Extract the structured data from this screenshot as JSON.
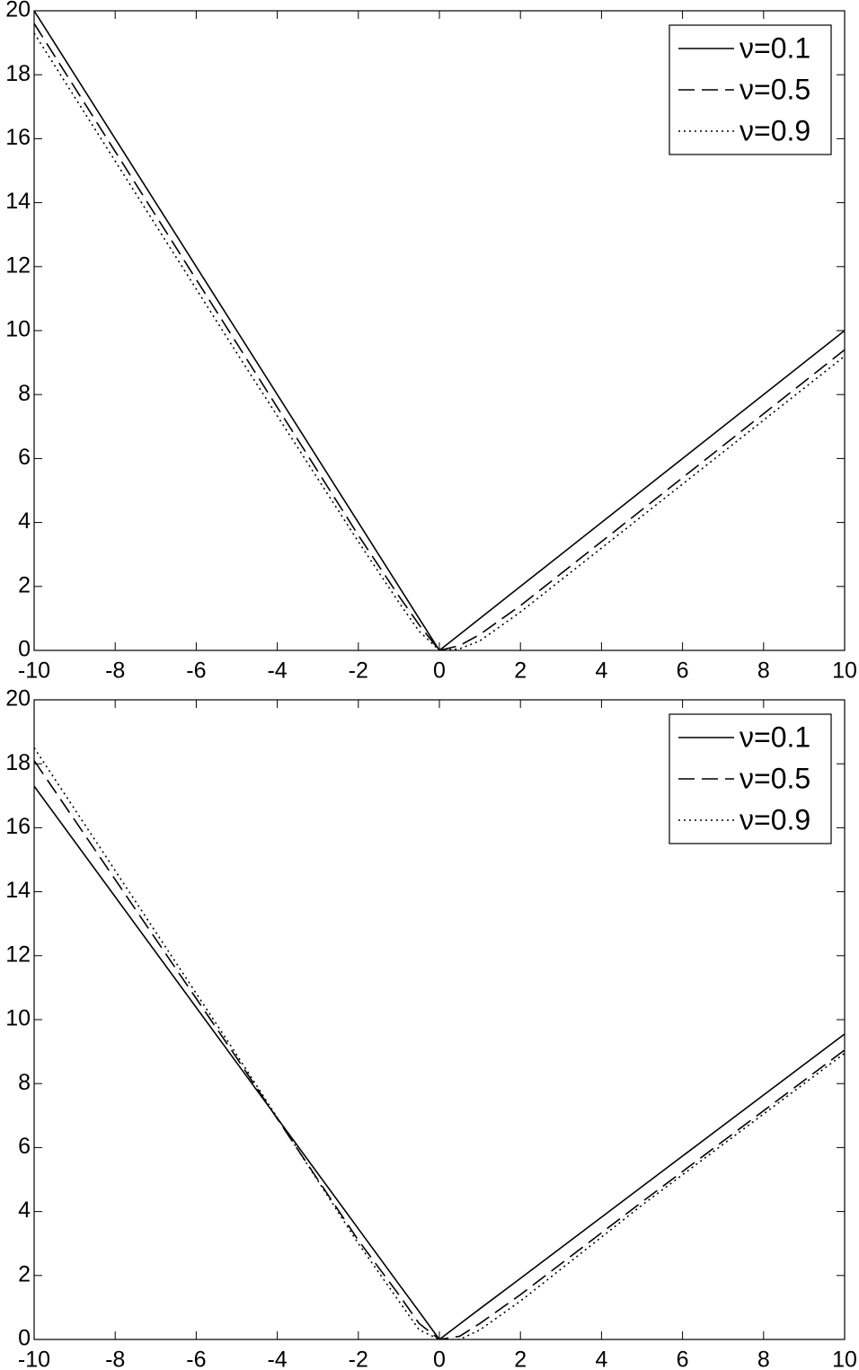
{
  "chart_data": [
    {
      "type": "line",
      "legend": "upper right",
      "x": [
        -10,
        -5,
        -2,
        -1,
        -0.5,
        0,
        0.5,
        1,
        2,
        5,
        10
      ],
      "series": [
        {
          "name": "ν=0.1",
          "color": "#000000",
          "linestyle": "solid",
          "values": [
            20,
            10,
            4,
            2,
            1,
            0,
            0.5,
            1,
            2,
            5,
            10
          ]
        },
        {
          "name": "ν=0.5",
          "color": "#000000",
          "linestyle": "dashed",
          "values": [
            19.6,
            9.6,
            3.6,
            1.7,
            0.8,
            0,
            0.15,
            0.5,
            1.4,
            4.4,
            9.4
          ]
        },
        {
          "name": "ν=0.9",
          "color": "#000000",
          "linestyle": "dotted",
          "values": [
            19.3,
            9.3,
            3.4,
            1.5,
            0.6,
            0,
            0.05,
            0.3,
            1.2,
            4.2,
            9.2
          ]
        }
      ],
      "xlim": [
        -10,
        10
      ],
      "xticks": [
        -10,
        -8,
        -6,
        -4,
        -2,
        0,
        2,
        4,
        6,
        8,
        10
      ],
      "ylim": [
        0,
        20
      ],
      "yticks": [
        0,
        2,
        4,
        6,
        8,
        10,
        12,
        14,
        16,
        18,
        20
      ]
    },
    {
      "type": "line",
      "legend": "upper right",
      "x": [
        -10,
        -5,
        -2,
        -1,
        -0.5,
        0,
        0.5,
        1,
        2,
        5,
        10
      ],
      "series": [
        {
          "name": "ν=0.1",
          "color": "#000000",
          "linestyle": "solid",
          "values": [
            17.3,
            8.65,
            3.46,
            1.73,
            0.87,
            0,
            0.48,
            0.96,
            1.91,
            4.78,
            9.55
          ]
        },
        {
          "name": "ν=0.5",
          "color": "#000000",
          "linestyle": "dashed",
          "values": [
            18.1,
            8.8,
            3.1,
            1.4,
            0.5,
            0,
            0.1,
            0.5,
            1.4,
            4.3,
            9.05
          ]
        },
        {
          "name": "ν=0.9",
          "color": "#000000",
          "linestyle": "dotted",
          "values": [
            18.5,
            8.9,
            3.0,
            1.2,
            0.3,
            0,
            0,
            0.3,
            1.2,
            4.2,
            8.95
          ]
        }
      ],
      "xlim": [
        -10,
        10
      ],
      "xticks": [
        -10,
        -8,
        -6,
        -4,
        -2,
        0,
        2,
        4,
        6,
        8,
        10
      ],
      "ylim": [
        0,
        20
      ],
      "yticks": [
        0,
        2,
        4,
        6,
        8,
        10,
        12,
        14,
        16,
        18,
        20
      ]
    }
  ]
}
